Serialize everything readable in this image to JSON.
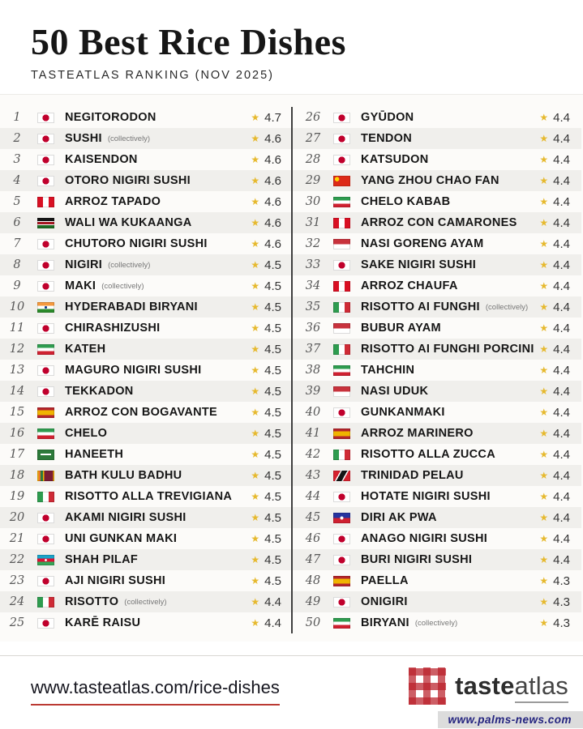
{
  "header": {
    "title": "50 Best Rice Dishes",
    "subtitle": "TASTEATLAS RANKING (NOV 2025)"
  },
  "list": {
    "items": [
      {
        "rank": "1",
        "flag": "japan",
        "dish": "NEGITORODON",
        "note": "",
        "rating": "4.7"
      },
      {
        "rank": "2",
        "flag": "japan",
        "dish": "SUSHI",
        "note": "(collectively)",
        "rating": "4.6"
      },
      {
        "rank": "3",
        "flag": "japan",
        "dish": "KAISENDON",
        "note": "",
        "rating": "4.6"
      },
      {
        "rank": "4",
        "flag": "japan",
        "dish": "OTORO NIGIRI SUSHI",
        "note": "",
        "rating": "4.6"
      },
      {
        "rank": "5",
        "flag": "peru",
        "dish": "ARROZ TAPADO",
        "note": "",
        "rating": "4.6"
      },
      {
        "rank": "6",
        "flag": "kenya",
        "dish": "WALI WA KUKAANGA",
        "note": "",
        "rating": "4.6"
      },
      {
        "rank": "7",
        "flag": "japan",
        "dish": "CHUTORO NIGIRI SUSHI",
        "note": "",
        "rating": "4.6"
      },
      {
        "rank": "8",
        "flag": "japan",
        "dish": "NIGIRI",
        "note": "(collectively)",
        "rating": "4.5"
      },
      {
        "rank": "9",
        "flag": "japan",
        "dish": "MAKI",
        "note": "(collectively)",
        "rating": "4.5"
      },
      {
        "rank": "10",
        "flag": "india",
        "dish": "HYDERABADI BIRYANI",
        "note": "",
        "rating": "4.5"
      },
      {
        "rank": "11",
        "flag": "japan",
        "dish": "CHIRASHIZUSHI",
        "note": "",
        "rating": "4.5"
      },
      {
        "rank": "12",
        "flag": "iran",
        "dish": "KATEH",
        "note": "",
        "rating": "4.5"
      },
      {
        "rank": "13",
        "flag": "japan",
        "dish": "MAGURO NIGIRI SUSHI",
        "note": "",
        "rating": "4.5"
      },
      {
        "rank": "14",
        "flag": "japan",
        "dish": "TEKKADON",
        "note": "",
        "rating": "4.5"
      },
      {
        "rank": "15",
        "flag": "spain",
        "dish": "ARROZ CON BOGAVANTE",
        "note": "",
        "rating": "4.5"
      },
      {
        "rank": "16",
        "flag": "iran",
        "dish": "CHELO",
        "note": "",
        "rating": "4.5"
      },
      {
        "rank": "17",
        "flag": "saudi-arabia",
        "dish": "HANEETH",
        "note": "",
        "rating": "4.5"
      },
      {
        "rank": "18",
        "flag": "sri-lanka",
        "dish": "BATH KULU BADHU",
        "note": "",
        "rating": "4.5"
      },
      {
        "rank": "19",
        "flag": "italy",
        "dish": "RISOTTO ALLA TREVIGIANA",
        "note": "",
        "rating": "4.5"
      },
      {
        "rank": "20",
        "flag": "japan",
        "dish": "AKAMI NIGIRI SUSHI",
        "note": "",
        "rating": "4.5"
      },
      {
        "rank": "21",
        "flag": "japan",
        "dish": "UNI GUNKAN MAKI",
        "note": "",
        "rating": "4.5"
      },
      {
        "rank": "22",
        "flag": "azerbaijan",
        "dish": "SHAH PILAF",
        "note": "",
        "rating": "4.5"
      },
      {
        "rank": "23",
        "flag": "japan",
        "dish": "AJI NIGIRI SUSHI",
        "note": "",
        "rating": "4.5"
      },
      {
        "rank": "24",
        "flag": "italy",
        "dish": "RISOTTO",
        "note": "(collectively)",
        "rating": "4.4"
      },
      {
        "rank": "25",
        "flag": "japan",
        "dish": "KARĒ RAISU",
        "note": "",
        "rating": "4.4"
      },
      {
        "rank": "26",
        "flag": "japan",
        "dish": "GYŪDON",
        "note": "",
        "rating": "4.4"
      },
      {
        "rank": "27",
        "flag": "japan",
        "dish": "TENDON",
        "note": "",
        "rating": "4.4"
      },
      {
        "rank": "28",
        "flag": "japan",
        "dish": "KATSUDON",
        "note": "",
        "rating": "4.4"
      },
      {
        "rank": "29",
        "flag": "china",
        "dish": "YANG ZHOU CHAO FAN",
        "note": "",
        "rating": "4.4"
      },
      {
        "rank": "30",
        "flag": "iran",
        "dish": "CHELO KABAB",
        "note": "",
        "rating": "4.4"
      },
      {
        "rank": "31",
        "flag": "peru",
        "dish": "ARROZ CON CAMARONES",
        "note": "",
        "rating": "4.4"
      },
      {
        "rank": "32",
        "flag": "indonesia",
        "dish": "NASI GORENG AYAM",
        "note": "",
        "rating": "4.4"
      },
      {
        "rank": "33",
        "flag": "japan",
        "dish": "SAKE NIGIRI SUSHI",
        "note": "",
        "rating": "4.4"
      },
      {
        "rank": "34",
        "flag": "peru",
        "dish": "ARROZ CHAUFA",
        "note": "",
        "rating": "4.4"
      },
      {
        "rank": "35",
        "flag": "italy",
        "dish": "RISOTTO AI FUNGHI",
        "note": "(collectively)",
        "rating": "4.4"
      },
      {
        "rank": "36",
        "flag": "indonesia",
        "dish": "BUBUR AYAM",
        "note": "",
        "rating": "4.4"
      },
      {
        "rank": "37",
        "flag": "italy",
        "dish": "RISOTTO AI FUNGHI PORCINI",
        "note": "",
        "rating": "4.4"
      },
      {
        "rank": "38",
        "flag": "iran",
        "dish": "TAHCHIN",
        "note": "",
        "rating": "4.4"
      },
      {
        "rank": "39",
        "flag": "indonesia",
        "dish": "NASI UDUK",
        "note": "",
        "rating": "4.4"
      },
      {
        "rank": "40",
        "flag": "japan",
        "dish": "GUNKANMAKI",
        "note": "",
        "rating": "4.4"
      },
      {
        "rank": "41",
        "flag": "spain",
        "dish": "ARROZ MARINERO",
        "note": "",
        "rating": "4.4"
      },
      {
        "rank": "42",
        "flag": "italy",
        "dish": "RISOTTO ALLA ZUCCA",
        "note": "",
        "rating": "4.4"
      },
      {
        "rank": "43",
        "flag": "trinidad-and-tobago",
        "dish": "TRINIDAD PELAU",
        "note": "",
        "rating": "4.4"
      },
      {
        "rank": "44",
        "flag": "japan",
        "dish": "HOTATE NIGIRI SUSHI",
        "note": "",
        "rating": "4.4"
      },
      {
        "rank": "45",
        "flag": "haiti",
        "dish": "DIRI AK PWA",
        "note": "",
        "rating": "4.4"
      },
      {
        "rank": "46",
        "flag": "japan",
        "dish": "ANAGO NIGIRI SUSHI",
        "note": "",
        "rating": "4.4"
      },
      {
        "rank": "47",
        "flag": "japan",
        "dish": "BURI NIGIRI SUSHI",
        "note": "",
        "rating": "4.4"
      },
      {
        "rank": "48",
        "flag": "spain",
        "dish": "PAELLA",
        "note": "",
        "rating": "4.3"
      },
      {
        "rank": "49",
        "flag": "japan",
        "dish": "ONIGIRI",
        "note": "",
        "rating": "4.3"
      },
      {
        "rank": "50",
        "flag": "iran",
        "dish": "BIRYANI",
        "note": "(collectively)",
        "rating": "4.3"
      }
    ]
  },
  "footer": {
    "url": "www.tasteatlas.com/rice-dishes",
    "logo_bold": "taste",
    "logo_light": "atlas",
    "credit": "www.palms-news.com"
  },
  "icons": {
    "star": "star-icon",
    "logo_pattern": "gingham-logo-icon"
  },
  "colors": {
    "star_gold": "#e6b92e",
    "underline_red": "#bb3a33",
    "stripe_gray": "#f0efec",
    "divider_dark": "#3f3f3f",
    "credit_navy": "#23237f"
  }
}
